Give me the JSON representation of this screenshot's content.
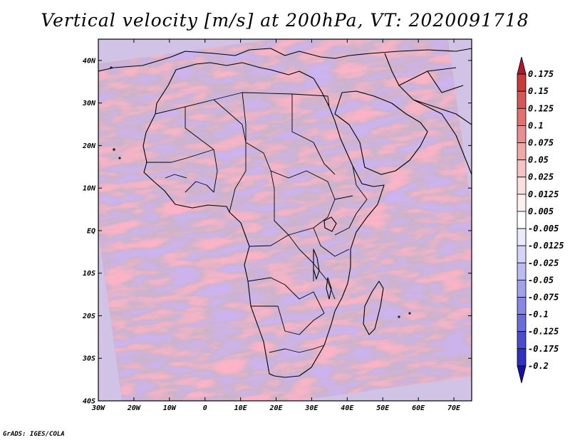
{
  "title": "Vertical velocity [m/s] at 200hPa, VT: 2020091718",
  "credit": "GrADS: IGES/COLA",
  "map": {
    "lon_range": [
      -30,
      75
    ],
    "lat_range": [
      -40,
      45
    ],
    "lat_ticks": [
      {
        "value": 40,
        "label": "40N"
      },
      {
        "value": 30,
        "label": "30N"
      },
      {
        "value": 20,
        "label": "20N"
      },
      {
        "value": 10,
        "label": "10N"
      },
      {
        "value": 0,
        "label": "EQ"
      },
      {
        "value": -10,
        "label": "10S"
      },
      {
        "value": -20,
        "label": "20S"
      },
      {
        "value": -30,
        "label": "30S"
      },
      {
        "value": -40,
        "label": "40S"
      }
    ],
    "lon_ticks": [
      {
        "value": -30,
        "label": "30W"
      },
      {
        "value": -20,
        "label": "20W"
      },
      {
        "value": -10,
        "label": "10W"
      },
      {
        "value": 0,
        "label": "0"
      },
      {
        "value": 10,
        "label": "10E"
      },
      {
        "value": 20,
        "label": "20E"
      },
      {
        "value": 30,
        "label": "30E"
      },
      {
        "value": 40,
        "label": "40E"
      },
      {
        "value": 50,
        "label": "50E"
      },
      {
        "value": 60,
        "label": "60E"
      },
      {
        "value": 70,
        "label": "70E"
      }
    ]
  },
  "colorbar": {
    "labels": [
      "0.175",
      "0.15",
      "0.125",
      "0.1",
      "0.075",
      "0.05",
      "0.025",
      "0.0125",
      "0.005",
      "-0.005",
      "-0.0125",
      "-0.025",
      "-0.05",
      "-0.075",
      "-0.1",
      "-0.125",
      "-0.175",
      "-0.2"
    ],
    "colors": [
      "#b2182b",
      "#c73b3b",
      "#d65757",
      "#e07272",
      "#e98e8e",
      "#f0a9a9",
      "#f6c4c4",
      "#fbdede",
      "#fff0f0",
      "#ffffff",
      "#ebebfb",
      "#d5d5f7",
      "#bcbcf1",
      "#a2a2ea",
      "#8888e3",
      "#6b6bdb",
      "#4b4bcf",
      "#3030bf",
      "#1a0fa3"
    ]
  },
  "chart_data": {
    "type": "heatmap",
    "title": "Vertical velocity [m/s] at 200hPa, VT: 2020091718",
    "variable": "Vertical velocity",
    "units": "m/s",
    "level": "200hPa",
    "valid_time": "2020091718",
    "xlim": [
      -30,
      75
    ],
    "ylim": [
      -40,
      45
    ],
    "contour_levels": [
      -0.2,
      -0.175,
      -0.125,
      -0.1,
      -0.075,
      -0.05,
      -0.025,
      -0.0125,
      -0.005,
      0.005,
      0.0125,
      0.025,
      0.05,
      0.075,
      0.1,
      0.125,
      0.15,
      0.175
    ]
  }
}
